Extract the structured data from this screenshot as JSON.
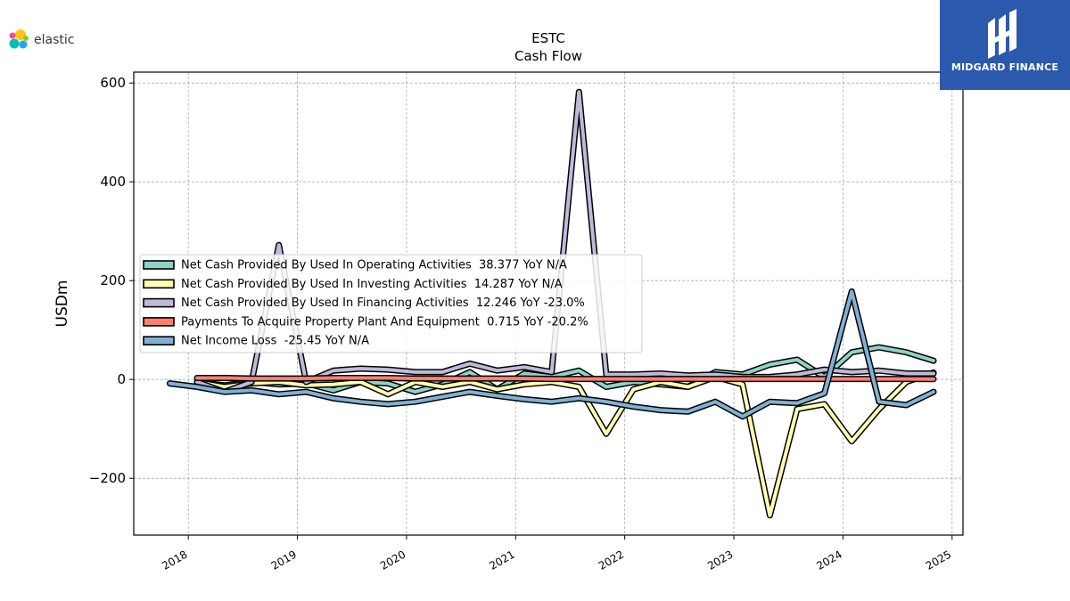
{
  "brand": {
    "left_logo_text": "elastic",
    "right_logo_text": "MIDGARD FINANCE",
    "right_logo_color": "#2b59ad"
  },
  "chart_data": {
    "type": "line",
    "title": "ESTC",
    "subtitle": "Cash Flow",
    "ylabel": "USDm",
    "xlabel": "",
    "xlim": [
      2017.5,
      2025.1
    ],
    "ylim": [
      -315,
      622
    ],
    "x_ticks": [
      2018,
      2019,
      2020,
      2021,
      2022,
      2023,
      2024,
      2025
    ],
    "x_tick_labels": [
      "2018",
      "2019",
      "2020",
      "2021",
      "2022",
      "2023",
      "2024",
      "2025"
    ],
    "y_ticks": [
      -200,
      0,
      200,
      400,
      600
    ],
    "y_tick_labels": [
      "−200",
      "0",
      "200",
      "400",
      "600"
    ],
    "grid": true,
    "legend_position": "center-left",
    "series": [
      {
        "name": "Net Cash Provided By Used In Operating Activities",
        "legend": "Net Cash Provided By Used In Operating Activities  38.377 YoY N/A",
        "color": "#8dd3c7",
        "x": [
          2018.08,
          2018.33,
          2018.58,
          2018.83,
          2019.08,
          2019.33,
          2019.58,
          2019.83,
          2020.08,
          2020.33,
          2020.58,
          2020.83,
          2021.08,
          2021.33,
          2021.58,
          2021.83,
          2022.08,
          2022.33,
          2022.58,
          2022.83,
          2023.08,
          2023.33,
          2023.58,
          2023.83,
          2024.08,
          2024.33,
          2024.58,
          2024.83
        ],
        "values": [
          -5,
          -12,
          -5,
          -10,
          -8,
          -22,
          -5,
          -8,
          -25,
          -10,
          15,
          -20,
          12,
          5,
          18,
          -15,
          -5,
          -10,
          -15,
          15,
          10,
          30,
          40,
          5,
          55,
          65,
          55,
          38
        ]
      },
      {
        "name": "Net Cash Provided By Used In Investing Activities",
        "legend": "Net Cash Provided By Used In Investing Activities  14.287 YoY N/A",
        "color": "#ffffb3",
        "x": [
          2018.08,
          2018.33,
          2018.58,
          2018.83,
          2019.08,
          2019.33,
          2019.58,
          2019.83,
          2020.08,
          2020.33,
          2020.58,
          2020.83,
          2021.08,
          2021.33,
          2021.58,
          2021.83,
          2022.08,
          2022.33,
          2022.58,
          2022.83,
          2023.08,
          2023.33,
          2023.58,
          2023.83,
          2024.08,
          2024.33,
          2024.58,
          2024.83
        ],
        "values": [
          -5,
          -15,
          -8,
          -5,
          -12,
          -10,
          -5,
          -30,
          -5,
          -15,
          -5,
          -20,
          -10,
          -5,
          -15,
          -110,
          -20,
          -5,
          -15,
          5,
          -10,
          -275,
          -60,
          -50,
          -125,
          -60,
          -5,
          14
        ]
      },
      {
        "name": "Net Cash Provided By Used In Financing Activities",
        "legend": "Net Cash Provided By Used In Financing Activities  12.246 YoY -23.0%",
        "color": "#bebada",
        "x": [
          2018.08,
          2018.33,
          2018.58,
          2018.83,
          2019.08,
          2019.33,
          2019.58,
          2019.83,
          2020.08,
          2020.33,
          2020.58,
          2020.83,
          2021.08,
          2021.33,
          2021.58,
          2021.83,
          2022.08,
          2022.33,
          2022.58,
          2022.83,
          2023.08,
          2023.33,
          2023.58,
          2023.83,
          2024.08,
          2024.33,
          2024.58,
          2024.83
        ],
        "values": [
          -5,
          -25,
          -5,
          272,
          -5,
          18,
          22,
          20,
          15,
          15,
          32,
          18,
          25,
          15,
          582,
          10,
          10,
          12,
          8,
          10,
          5,
          5,
          10,
          20,
          15,
          18,
          12,
          12
        ]
      },
      {
        "name": "Payments To Acquire Property Plant And Equipment",
        "legend": "Payments To Acquire Property Plant And Equipment  0.715 YoY -20.2%",
        "color": "#fb8072",
        "x": [
          2018.08,
          2018.33,
          2018.58,
          2018.83,
          2019.08,
          2019.33,
          2019.58,
          2019.83,
          2020.08,
          2020.33,
          2020.58,
          2020.83,
          2021.08,
          2021.33,
          2021.58,
          2021.83,
          2022.08,
          2022.33,
          2022.58,
          2022.83,
          2023.08,
          2023.33,
          2023.58,
          2023.83,
          2024.08,
          2024.33,
          2024.58,
          2024.83
        ],
        "values": [
          3,
          3,
          2,
          2,
          2,
          3,
          3,
          3,
          2,
          2,
          2,
          2,
          2,
          1,
          1,
          1,
          1,
          1,
          1,
          1,
          1,
          1,
          1,
          1,
          1,
          1,
          1,
          0.7
        ]
      },
      {
        "name": "Net Income Loss",
        "legend": "Net Income Loss  -25.45 YoY N/A",
        "color": "#80b1d3",
        "x": [
          2017.83,
          2018.08,
          2018.33,
          2018.58,
          2018.83,
          2019.08,
          2019.33,
          2019.58,
          2019.83,
          2020.08,
          2020.33,
          2020.58,
          2020.83,
          2021.08,
          2021.33,
          2021.58,
          2021.83,
          2022.08,
          2022.33,
          2022.58,
          2022.83,
          2023.08,
          2023.33,
          2023.58,
          2023.83,
          2024.08,
          2024.33,
          2024.58,
          2024.83
        ],
        "values": [
          -8,
          -15,
          -25,
          -22,
          -30,
          -25,
          -38,
          -45,
          -50,
          -45,
          -35,
          -25,
          -33,
          -40,
          -45,
          -38,
          -45,
          -55,
          -62,
          -65,
          -45,
          -75,
          -45,
          -48,
          -28,
          178,
          -45,
          -52,
          -25
        ]
      }
    ]
  }
}
